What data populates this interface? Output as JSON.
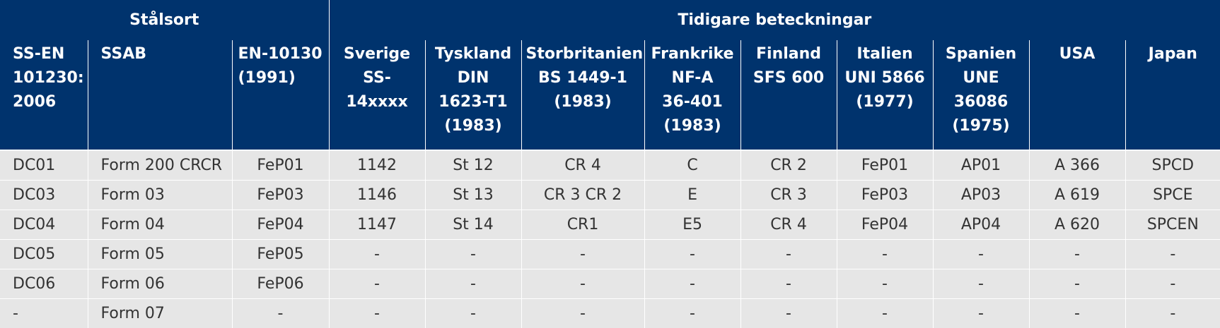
{
  "header": {
    "group_left": "Stålsort",
    "group_right": "Tidigare beteckningar",
    "columns": [
      [
        "SS-EN",
        "101230:",
        "2006"
      ],
      [
        "SSAB"
      ],
      [
        "EN-10130",
        "(1991)"
      ],
      [
        "Sverige",
        "SS-14xxxx"
      ],
      [
        "Tyskland",
        "DIN",
        "1623-T1",
        "(1983)"
      ],
      [
        "Storbritanien",
        "BS 1449-1",
        "(1983)"
      ],
      [
        "Frankrike",
        "NF-A",
        "36-401",
        "(1983)"
      ],
      [
        "Finland",
        "SFS 600"
      ],
      [
        "Italien",
        "UNI 5866",
        "(1977)"
      ],
      [
        "Spanien",
        "UNE",
        "36086",
        "(1975)"
      ],
      [
        "USA"
      ],
      [
        "Japan"
      ]
    ]
  },
  "rows": [
    [
      "DC01",
      "Form 200 CRCR",
      "FeP01",
      "1142",
      "St 12",
      "CR 4",
      "C",
      "CR 2",
      "FeP01",
      "AP01",
      "A 366",
      "SPCD"
    ],
    [
      "DC03",
      "Form 03",
      "FeP03",
      "1146",
      "St 13",
      "CR 3 CR 2",
      "E",
      "CR 3",
      "FeP03",
      "AP03",
      "A 619",
      "SPCE"
    ],
    [
      "DC04",
      "Form 04",
      "FeP04",
      "1147",
      "St 14",
      "CR1",
      "E5",
      "CR 4",
      "FeP04",
      "AP04",
      "A 620",
      "SPCEN"
    ],
    [
      "DC05",
      "Form 05",
      "FeP05",
      "-",
      "-",
      "-",
      "-",
      "-",
      "-",
      "-",
      "-",
      "-"
    ],
    [
      "DC06",
      "Form 06",
      "FeP06",
      "-",
      "-",
      "-",
      "-",
      "-",
      "-",
      "-",
      "-",
      "-"
    ],
    [
      "-",
      "Form 07",
      "-",
      "-",
      "-",
      "-",
      "-",
      "-",
      "-",
      "-",
      "-",
      "-"
    ]
  ],
  "colors": {
    "header_bg": "#00336d",
    "header_text": "#ffffff",
    "row_bg": "#e6e6e6",
    "row_text": "#333333"
  }
}
